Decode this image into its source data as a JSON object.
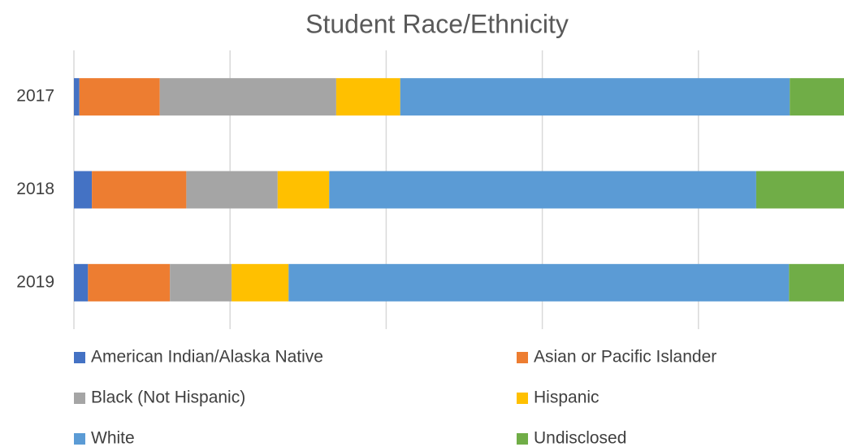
{
  "chart_data": {
    "type": "stacked-bar-horizontal",
    "title": "Student Race/Ethnicity",
    "categories": [
      "2017",
      "2018",
      "2019"
    ],
    "series": [
      {
        "name": "American Indian/Alaska Native",
        "color": "#4472c4",
        "values": [
          0.7,
          2.3,
          1.8
        ]
      },
      {
        "name": "Asian or Pacific Islander",
        "color": "#ed7d31",
        "values": [
          10.3,
          12.1,
          10.5
        ]
      },
      {
        "name": "Black (Not Hispanic)",
        "color": "#a5a5a5",
        "values": [
          22.6,
          11.7,
          7.9
        ]
      },
      {
        "name": "Hispanic",
        "color": "#ffc000",
        "values": [
          8.2,
          6.6,
          7.3
        ]
      },
      {
        "name": "White",
        "color": "#5b9bd5",
        "values": [
          49.9,
          54.7,
          64.1
        ]
      },
      {
        "name": "Undisclosed",
        "color": "#70ad47",
        "values": [
          8.3,
          12.6,
          8.4
        ]
      }
    ],
    "xlim": [
      0,
      100
    ],
    "xticks": [
      0,
      20,
      40,
      60,
      80,
      100
    ],
    "grid": true,
    "legend": "bottom"
  }
}
